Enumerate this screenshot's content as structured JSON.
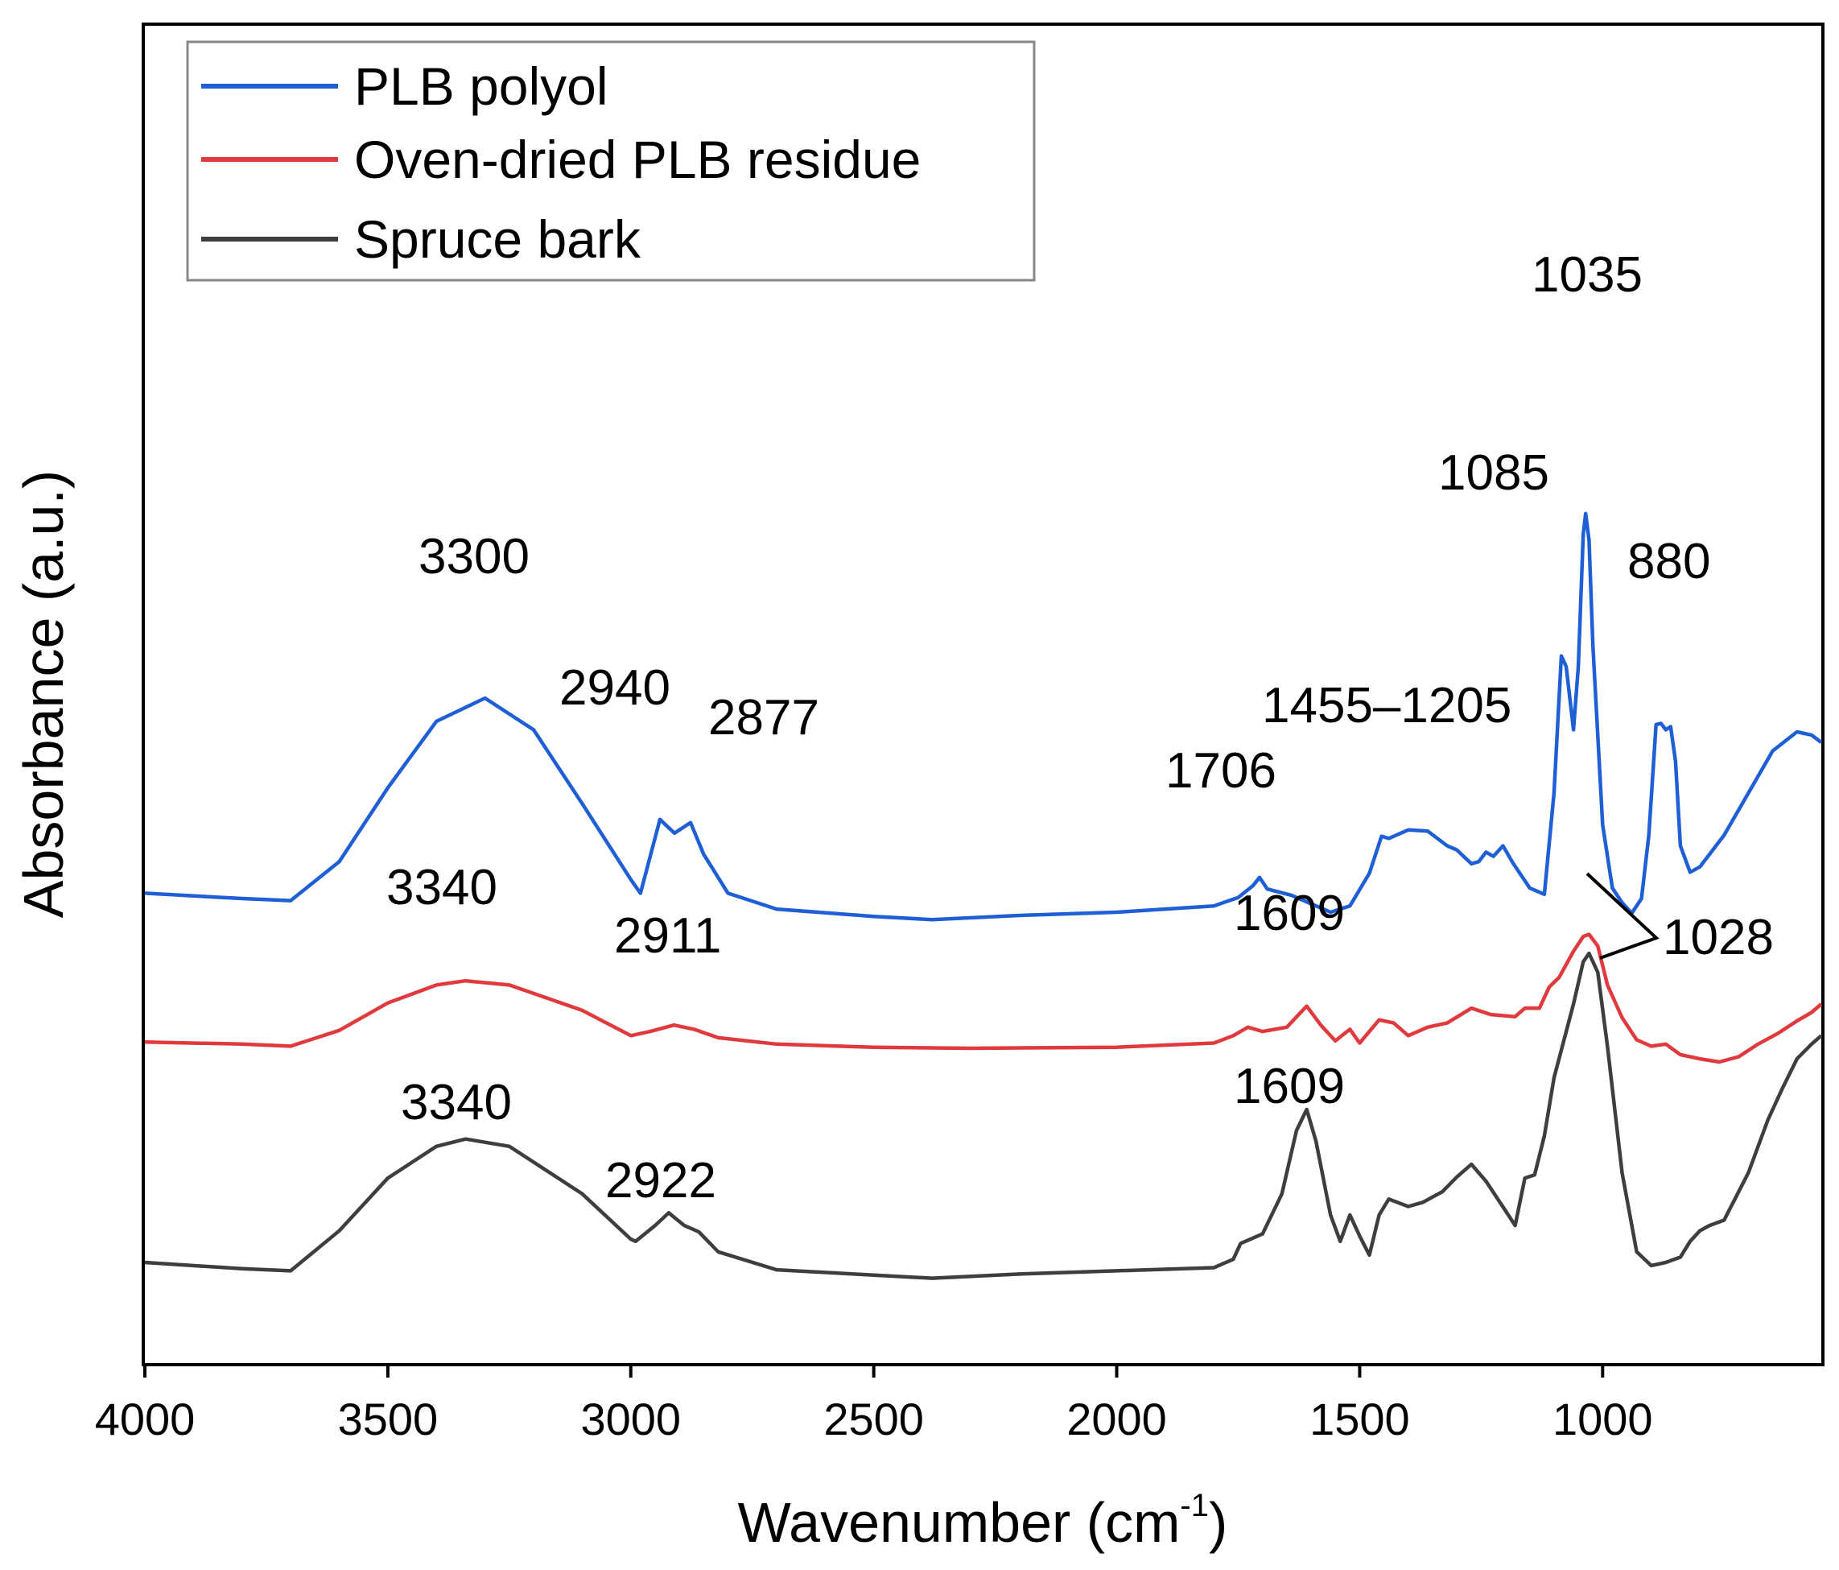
{
  "chart_data": {
    "type": "line",
    "title": "",
    "xlabel": "Wavenumber (cm",
    "xlabel_sup": "-1",
    "xlabel_close": ")",
    "ylabel": "Absorbance (a.u.)",
    "xlim": [
      4000,
      550
    ],
    "x_reversed": true,
    "ylim": [
      0,
      1
    ],
    "y_ticks_shown": false,
    "x_ticks": [
      4000,
      3500,
      3000,
      2500,
      2000,
      1500,
      1000
    ],
    "x_tick_labels": [
      "4000",
      "3500",
      "3000",
      "2500",
      "2000",
      "1500",
      "1000"
    ],
    "grid": false,
    "legend_position": "top-left",
    "series": [
      {
        "name": "PLB polyol",
        "color": "#1f5fd6",
        "points": [
          [
            4000,
            0.405
          ],
          [
            3800,
            0.4
          ],
          [
            3700,
            0.398
          ],
          [
            3600,
            0.435
          ],
          [
            3500,
            0.505
          ],
          [
            3400,
            0.568
          ],
          [
            3300,
            0.59
          ],
          [
            3200,
            0.56
          ],
          [
            3100,
            0.49
          ],
          [
            3000,
            0.418
          ],
          [
            2980,
            0.405
          ],
          [
            2940,
            0.475
          ],
          [
            2910,
            0.462
          ],
          [
            2877,
            0.472
          ],
          [
            2850,
            0.442
          ],
          [
            2800,
            0.405
          ],
          [
            2700,
            0.39
          ],
          [
            2500,
            0.383
          ],
          [
            2380,
            0.38
          ],
          [
            2200,
            0.384
          ],
          [
            2000,
            0.387
          ],
          [
            1800,
            0.393
          ],
          [
            1750,
            0.401
          ],
          [
            1720,
            0.412
          ],
          [
            1706,
            0.42
          ],
          [
            1690,
            0.409
          ],
          [
            1640,
            0.403
          ],
          [
            1600,
            0.395
          ],
          [
            1560,
            0.387
          ],
          [
            1520,
            0.393
          ],
          [
            1480,
            0.424
          ],
          [
            1455,
            0.459
          ],
          [
            1440,
            0.457
          ],
          [
            1400,
            0.465
          ],
          [
            1360,
            0.464
          ],
          [
            1320,
            0.45
          ],
          [
            1300,
            0.446
          ],
          [
            1270,
            0.433
          ],
          [
            1255,
            0.435
          ],
          [
            1240,
            0.444
          ],
          [
            1225,
            0.44
          ],
          [
            1205,
            0.45
          ],
          [
            1185,
            0.434
          ],
          [
            1150,
            0.41
          ],
          [
            1120,
            0.404
          ],
          [
            1100,
            0.5
          ],
          [
            1085,
            0.63
          ],
          [
            1075,
            0.62
          ],
          [
            1060,
            0.56
          ],
          [
            1050,
            0.62
          ],
          [
            1040,
            0.745
          ],
          [
            1035,
            0.765
          ],
          [
            1028,
            0.74
          ],
          [
            1020,
            0.64
          ],
          [
            1000,
            0.47
          ],
          [
            980,
            0.41
          ],
          [
            960,
            0.396
          ],
          [
            940,
            0.386
          ],
          [
            920,
            0.4
          ],
          [
            905,
            0.46
          ],
          [
            890,
            0.565
          ],
          [
            880,
            0.566
          ],
          [
            870,
            0.56
          ],
          [
            860,
            0.563
          ],
          [
            850,
            0.53
          ],
          [
            840,
            0.45
          ],
          [
            820,
            0.425
          ],
          [
            800,
            0.43
          ],
          [
            750,
            0.46
          ],
          [
            700,
            0.5
          ],
          [
            650,
            0.54
          ],
          [
            600,
            0.558
          ],
          [
            570,
            0.555
          ],
          [
            550,
            0.548
          ]
        ]
      },
      {
        "name": "Oven-dried PLB residue",
        "color": "#e03a3e",
        "points": [
          [
            4000,
            0.264
          ],
          [
            3800,
            0.262
          ],
          [
            3700,
            0.26
          ],
          [
            3600,
            0.275
          ],
          [
            3500,
            0.301
          ],
          [
            3400,
            0.318
          ],
          [
            3340,
            0.322
          ],
          [
            3250,
            0.318
          ],
          [
            3100,
            0.294
          ],
          [
            3000,
            0.27
          ],
          [
            2960,
            0.274
          ],
          [
            2911,
            0.28
          ],
          [
            2870,
            0.276
          ],
          [
            2820,
            0.268
          ],
          [
            2700,
            0.262
          ],
          [
            2500,
            0.259
          ],
          [
            2300,
            0.258
          ],
          [
            2000,
            0.259
          ],
          [
            1800,
            0.263
          ],
          [
            1760,
            0.27
          ],
          [
            1730,
            0.278
          ],
          [
            1700,
            0.274
          ],
          [
            1650,
            0.278
          ],
          [
            1609,
            0.298
          ],
          [
            1580,
            0.28
          ],
          [
            1550,
            0.265
          ],
          [
            1520,
            0.276
          ],
          [
            1500,
            0.263
          ],
          [
            1460,
            0.285
          ],
          [
            1430,
            0.282
          ],
          [
            1400,
            0.27
          ],
          [
            1360,
            0.278
          ],
          [
            1320,
            0.282
          ],
          [
            1270,
            0.296
          ],
          [
            1230,
            0.29
          ],
          [
            1180,
            0.288
          ],
          [
            1160,
            0.296
          ],
          [
            1130,
            0.296
          ],
          [
            1110,
            0.316
          ],
          [
            1090,
            0.325
          ],
          [
            1060,
            0.35
          ],
          [
            1040,
            0.364
          ],
          [
            1028,
            0.366
          ],
          [
            1010,
            0.355
          ],
          [
            990,
            0.318
          ],
          [
            960,
            0.287
          ],
          [
            930,
            0.266
          ],
          [
            900,
            0.26
          ],
          [
            870,
            0.262
          ],
          [
            840,
            0.252
          ],
          [
            800,
            0.248
          ],
          [
            760,
            0.245
          ],
          [
            720,
            0.25
          ],
          [
            680,
            0.262
          ],
          [
            640,
            0.272
          ],
          [
            600,
            0.284
          ],
          [
            570,
            0.292
          ],
          [
            550,
            0.3
          ]
        ]
      },
      {
        "name": "Spruce bark",
        "color": "#3e3e3e",
        "points": [
          [
            4000,
            0.055
          ],
          [
            3800,
            0.049
          ],
          [
            3700,
            0.047
          ],
          [
            3600,
            0.085
          ],
          [
            3500,
            0.135
          ],
          [
            3400,
            0.165
          ],
          [
            3340,
            0.172
          ],
          [
            3250,
            0.165
          ],
          [
            3100,
            0.12
          ],
          [
            3000,
            0.077
          ],
          [
            2990,
            0.075
          ],
          [
            2950,
            0.09
          ],
          [
            2922,
            0.102
          ],
          [
            2890,
            0.09
          ],
          [
            2860,
            0.084
          ],
          [
            2820,
            0.065
          ],
          [
            2700,
            0.048
          ],
          [
            2500,
            0.043
          ],
          [
            2380,
            0.04
          ],
          [
            2200,
            0.044
          ],
          [
            2000,
            0.047
          ],
          [
            1800,
            0.05
          ],
          [
            1760,
            0.058
          ],
          [
            1745,
            0.073
          ],
          [
            1720,
            0.078
          ],
          [
            1700,
            0.082
          ],
          [
            1660,
            0.12
          ],
          [
            1630,
            0.18
          ],
          [
            1609,
            0.2
          ],
          [
            1590,
            0.17
          ],
          [
            1560,
            0.1
          ],
          [
            1540,
            0.075
          ],
          [
            1520,
            0.1
          ],
          [
            1500,
            0.08
          ],
          [
            1480,
            0.062
          ],
          [
            1460,
            0.1
          ],
          [
            1440,
            0.115
          ],
          [
            1400,
            0.108
          ],
          [
            1370,
            0.112
          ],
          [
            1330,
            0.122
          ],
          [
            1300,
            0.136
          ],
          [
            1270,
            0.148
          ],
          [
            1240,
            0.132
          ],
          [
            1200,
            0.104
          ],
          [
            1180,
            0.09
          ],
          [
            1160,
            0.135
          ],
          [
            1140,
            0.138
          ],
          [
            1120,
            0.175
          ],
          [
            1100,
            0.23
          ],
          [
            1060,
            0.3
          ],
          [
            1040,
            0.34
          ],
          [
            1028,
            0.348
          ],
          [
            1010,
            0.33
          ],
          [
            990,
            0.26
          ],
          [
            960,
            0.14
          ],
          [
            930,
            0.065
          ],
          [
            900,
            0.052
          ],
          [
            870,
            0.055
          ],
          [
            840,
            0.06
          ],
          [
            820,
            0.075
          ],
          [
            800,
            0.085
          ],
          [
            780,
            0.09
          ],
          [
            750,
            0.095
          ],
          [
            700,
            0.14
          ],
          [
            660,
            0.19
          ],
          [
            630,
            0.22
          ],
          [
            600,
            0.248
          ],
          [
            570,
            0.262
          ],
          [
            550,
            0.27
          ]
        ]
      }
    ],
    "annotations": [
      {
        "text": "3300",
        "series": "PLB polyol"
      },
      {
        "text": "2940",
        "series": "PLB polyol"
      },
      {
        "text": "2877",
        "series": "PLB polyol"
      },
      {
        "text": "1706",
        "series": "PLB polyol"
      },
      {
        "text": "1455–1205",
        "series": "PLB polyol"
      },
      {
        "text": "1085",
        "series": "PLB polyol"
      },
      {
        "text": "1035",
        "series": "PLB polyol"
      },
      {
        "text": "880",
        "series": "PLB polyol"
      },
      {
        "text": "3340",
        "series": "Oven-dried PLB residue"
      },
      {
        "text": "2911",
        "series": "Oven-dried PLB residue"
      },
      {
        "text": "1609",
        "series": "Oven-dried PLB residue"
      },
      {
        "text": "1028",
        "series": "shared"
      },
      {
        "text": "3340",
        "series": "Spruce bark"
      },
      {
        "text": "2922",
        "series": "Spruce bark"
      },
      {
        "text": "1609",
        "series": "Spruce bark"
      }
    ]
  }
}
